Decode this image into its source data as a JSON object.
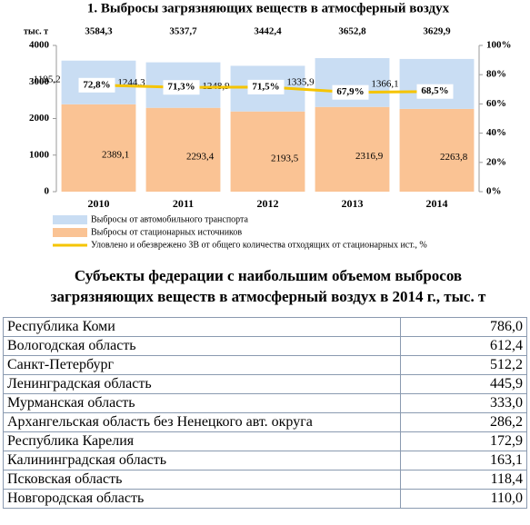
{
  "chart_data": {
    "type": "bar",
    "stacked": true,
    "title": "1. Выбросы загрязняющих веществ в атмосферный воздух",
    "ylabel": "тыс. т",
    "categories": [
      "2010",
      "2011",
      "2012",
      "2013",
      "2014"
    ],
    "ylim": [
      0,
      4000
    ],
    "yticks": [
      0,
      1000,
      2000,
      3000,
      4000
    ],
    "y2lim": [
      0,
      100
    ],
    "y2ticks": [
      {
        "value": 0,
        "label": "0%"
      },
      {
        "value": 20,
        "label": "20%"
      },
      {
        "value": 40,
        "label": "40%"
      },
      {
        "value": 60,
        "label": "60%"
      },
      {
        "value": 80,
        "label": "80%"
      },
      {
        "value": 100,
        "label": "100%"
      }
    ],
    "grid": false,
    "series": [
      {
        "name": "Выбросы от стационарных источников",
        "color": "#fac394",
        "values": [
          2389.1,
          2293.4,
          2193.5,
          2316.9,
          2263.8
        ],
        "value_labels": [
          "2389,1",
          "2293,4",
          "2193,5",
          "2316,9",
          "2263,8"
        ]
      },
      {
        "name": "Выбросы от автомобильного транспорта",
        "color": "#c9ddf3",
        "values": [
          1195.2,
          1244.3,
          1248.9,
          1335.9,
          1366.1
        ],
        "value_labels": [
          "1195,2",
          "1244,3",
          "1248,9",
          "1335,9",
          "1366,1"
        ]
      },
      {
        "name": "Уловлено и обезврежено ЗВ от общего количества отходящих от стационарных ист., %",
        "type": "line",
        "axis": "y2",
        "color": "#f5c400",
        "values": [
          72.8,
          71.3,
          71.5,
          67.9,
          68.5
        ],
        "value_labels": [
          "72,8%",
          "71,3%",
          "71,5%",
          "67,9%",
          "68,5%"
        ]
      }
    ],
    "totals": {
      "values": [
        3584.3,
        3537.7,
        3442.4,
        3652.8,
        3629.9
      ],
      "value_labels": [
        "3584,3",
        "3537,7",
        "3442,4",
        "3652,8",
        "3629,9"
      ]
    }
  },
  "table": {
    "title": "Субъекты федерации с наибольшим объемом выбросов загрязняющих веществ в атмосферный воздух в 2014 г., тыс. т",
    "rows": [
      [
        "Республика Коми",
        "786,0"
      ],
      [
        "Вологодская область",
        "612,4"
      ],
      [
        "Санкт-Петербург",
        "512,2"
      ],
      [
        "Ленинградская область",
        "445,9"
      ],
      [
        "Мурманская область",
        "333,0"
      ],
      [
        "Архангельская область без Ненецкого авт. округа",
        "286,2"
      ],
      [
        "Республика Карелия",
        "172,9"
      ],
      [
        "Калининградская область",
        "163,1"
      ],
      [
        "Псковская область",
        "118,4"
      ],
      [
        "Новгородская область",
        "110,0"
      ]
    ]
  }
}
